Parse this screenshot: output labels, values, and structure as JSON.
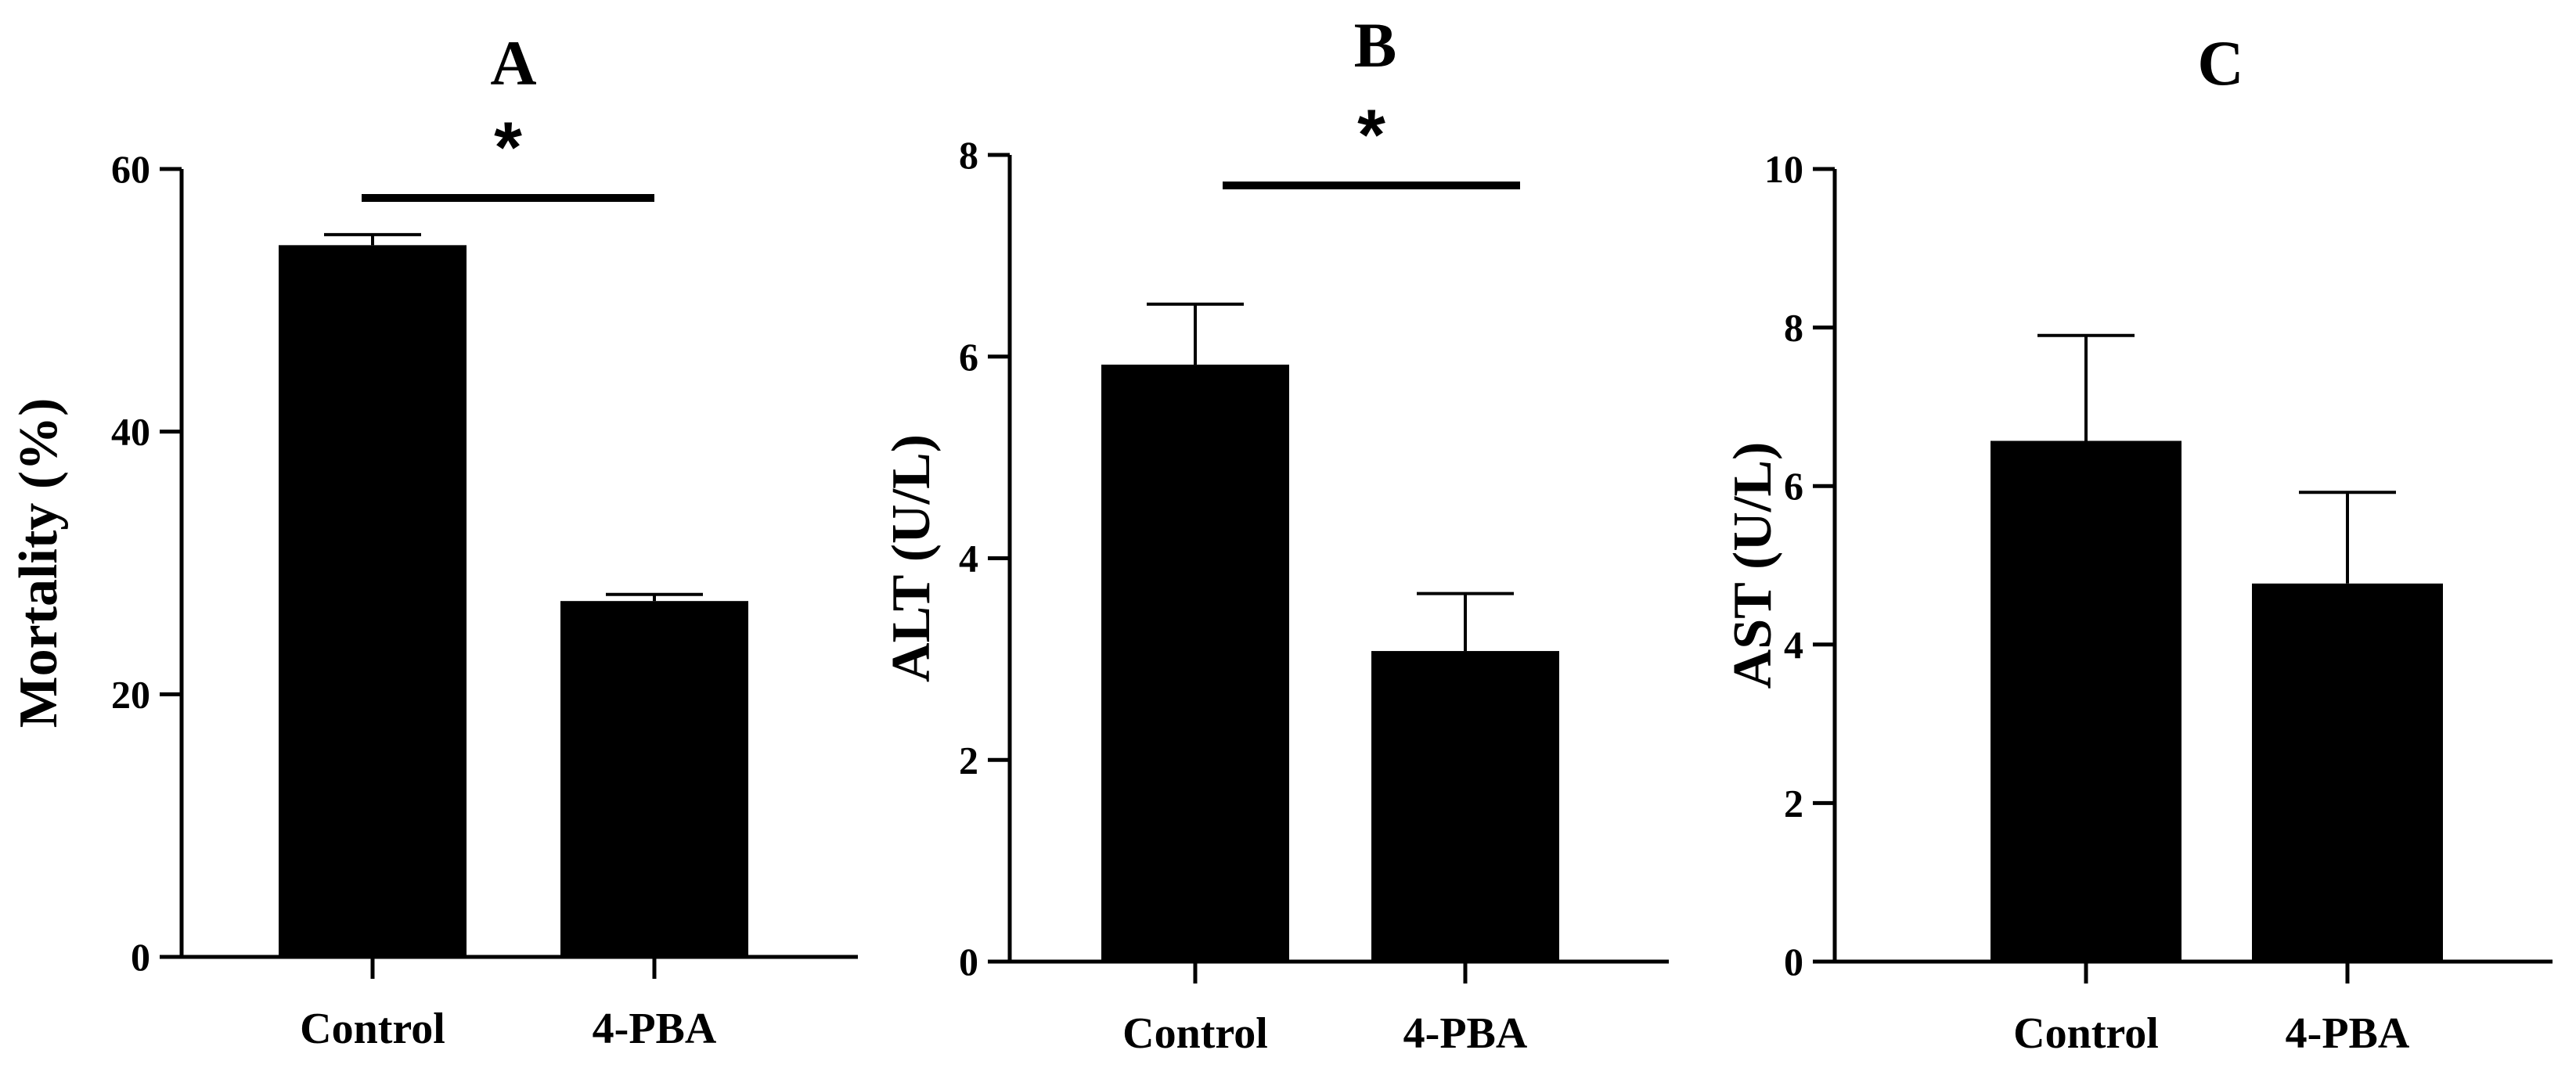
{
  "chart_data": [
    {
      "type": "bar",
      "panel": "A",
      "ylabel": "Mortality (%)",
      "categories": [
        "Control",
        "4-PBA"
      ],
      "values": [
        54.2,
        27.1
      ],
      "errors": [
        0.8,
        0.5
      ],
      "ylim": [
        0,
        60
      ],
      "yticks": [
        0,
        20,
        40,
        60
      ],
      "bar_color": "#000000",
      "significance": {
        "from": 0,
        "to": 1,
        "label": "*"
      }
    },
    {
      "type": "bar",
      "panel": "B",
      "ylabel": "ALT (U/L)",
      "categories": [
        "Control",
        "4-PBA"
      ],
      "values": [
        5.92,
        3.08
      ],
      "errors": [
        0.6,
        0.57
      ],
      "ylim": [
        0,
        8
      ],
      "yticks": [
        0,
        2,
        4,
        6,
        8
      ],
      "bar_color": "#000000",
      "significance": {
        "from": 0,
        "to": 1,
        "label": "*"
      }
    },
    {
      "type": "bar",
      "panel": "C",
      "ylabel": "AST (U/L)",
      "categories": [
        "Control",
        "4-PBA"
      ],
      "values": [
        6.57,
        4.77
      ],
      "errors": [
        1.33,
        1.15
      ],
      "ylim": [
        0,
        10
      ],
      "yticks": [
        0,
        2,
        4,
        6,
        8,
        10
      ],
      "bar_color": "#000000",
      "significance": null
    }
  ]
}
